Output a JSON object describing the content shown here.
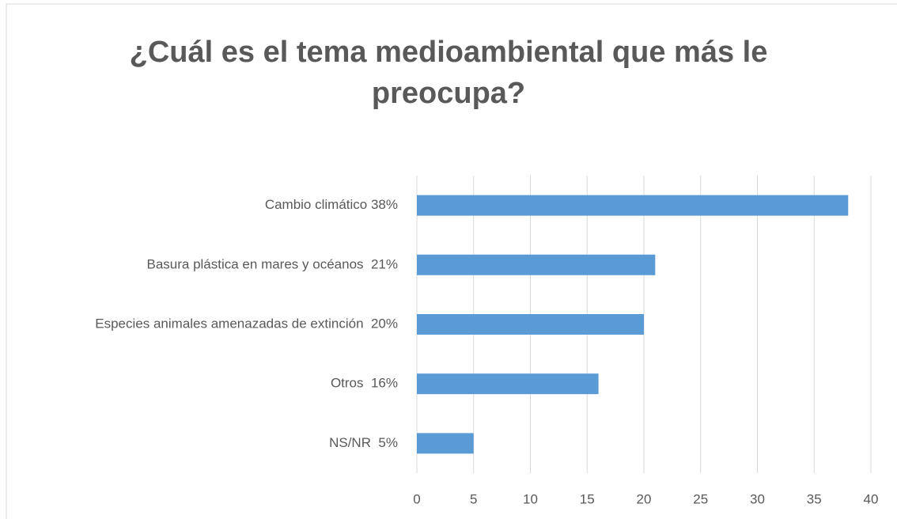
{
  "chart_data": {
    "type": "bar",
    "orientation": "horizontal",
    "title": "¿Cuál es el tema medioambiental que más le preocupa?",
    "categories": [
      "Cambio climático 38%",
      "Basura plástica en mares y océanos  21%",
      "Especies animales amenazadas de extinción  20%",
      "Otros  16%",
      "NS/NR  5%"
    ],
    "values": [
      38,
      21,
      20,
      16,
      5
    ],
    "color": "#5b9bd5",
    "xlim": [
      0,
      40
    ],
    "xticks": [
      0,
      5,
      10,
      15,
      20,
      25,
      30,
      35,
      40
    ],
    "grid": true
  }
}
